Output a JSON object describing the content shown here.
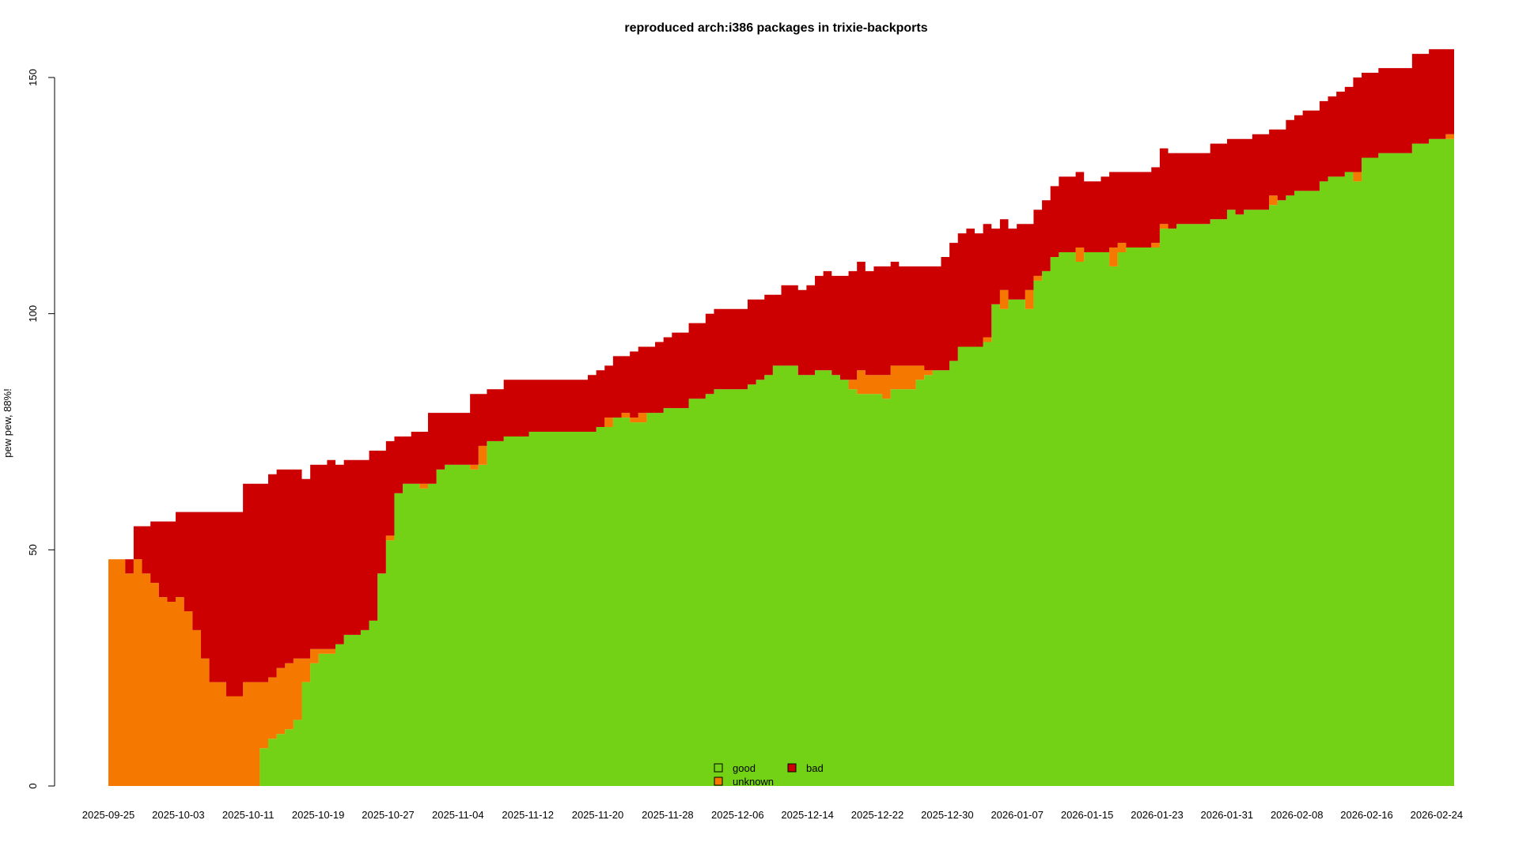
{
  "chart_data": {
    "type": "area",
    "title": "reproduced arch:i386 packages in trixie-backports",
    "ylabel": "pew pew, 88%!",
    "xlabel": "",
    "start_date": "2025-09-25",
    "end_date": "2026-02-26",
    "ylim": [
      0,
      150
    ],
    "yticks": [
      0,
      50,
      100,
      150
    ],
    "xtick_labels": [
      "2025-09-25",
      "2025-10-03",
      "2025-10-11",
      "2025-10-19",
      "2025-10-27",
      "2025-11-04",
      "2025-11-12",
      "2025-11-20",
      "2025-11-28",
      "2025-12-06",
      "2025-12-14",
      "2025-12-22",
      "2025-12-30",
      "2026-01-07",
      "2026-01-15",
      "2026-01-23",
      "2026-01-31",
      "2026-02-08",
      "2026-02-16",
      "2026-02-24"
    ],
    "stacking": "good at bottom, unknown stacked above good, bad stacked on top",
    "legend": {
      "placement": "bottom-center",
      "items": [
        {
          "label": "good",
          "color": "#73d216"
        },
        {
          "label": "bad",
          "color": "#cc0000"
        },
        {
          "label": "unknown",
          "color": "#f57900"
        }
      ]
    },
    "series": [
      {
        "name": "good",
        "color": "#73d216",
        "values": [
          0,
          0,
          0,
          0,
          0,
          0,
          0,
          0,
          0,
          0,
          0,
          0,
          0,
          0,
          0,
          0,
          0,
          0,
          8,
          10,
          11,
          12,
          14,
          22,
          26,
          28,
          28,
          30,
          32,
          32,
          33,
          35,
          45,
          52,
          62,
          64,
          64,
          63,
          64,
          67,
          68,
          68,
          68,
          67,
          68,
          73,
          73,
          74,
          74,
          74,
          75,
          75,
          75,
          75,
          75,
          75,
          75,
          75,
          76,
          76,
          78,
          78,
          77,
          77,
          79,
          79,
          80,
          80,
          80,
          82,
          82,
          83,
          84,
          84,
          84,
          84,
          85,
          86,
          87,
          89,
          89,
          89,
          87,
          87,
          88,
          88,
          87,
          86,
          84,
          83,
          83,
          83,
          82,
          84,
          84,
          84,
          86,
          87,
          88,
          88,
          90,
          93,
          93,
          93,
          94,
          102,
          101,
          103,
          103,
          101,
          107,
          109,
          112,
          113,
          113,
          111,
          113,
          113,
          113,
          110,
          113,
          114,
          114,
          114,
          114,
          118,
          118,
          119,
          119,
          119,
          119,
          120,
          120,
          122,
          121,
          122,
          122,
          122,
          123,
          124,
          125,
          126,
          126,
          126,
          128,
          129,
          129,
          130,
          128,
          133,
          133,
          134,
          134,
          134,
          134,
          136,
          136,
          137,
          137,
          137
        ]
      },
      {
        "name": "unknown",
        "color": "#f57900",
        "values": [
          48,
          48,
          45,
          48,
          45,
          43,
          40,
          39,
          40,
          37,
          33,
          27,
          22,
          22,
          19,
          19,
          22,
          22,
          14,
          13,
          14,
          14,
          13,
          5,
          3,
          1,
          1,
          0,
          0,
          0,
          0,
          0,
          0,
          1,
          0,
          0,
          0,
          1,
          0,
          0,
          0,
          0,
          0,
          1,
          4,
          0,
          0,
          0,
          0,
          0,
          0,
          0,
          0,
          0,
          0,
          0,
          0,
          0,
          0,
          2,
          0,
          1,
          1,
          2,
          0,
          0,
          0,
          0,
          0,
          0,
          0,
          0,
          0,
          0,
          0,
          0,
          0,
          0,
          0,
          0,
          0,
          0,
          0,
          0,
          0,
          0,
          0,
          0,
          2,
          5,
          4,
          4,
          5,
          5,
          5,
          5,
          3,
          1,
          0,
          0,
          0,
          0,
          0,
          0,
          1,
          0,
          4,
          0,
          0,
          4,
          1,
          0,
          0,
          0,
          0,
          3,
          0,
          0,
          0,
          4,
          2,
          0,
          0,
          0,
          1,
          1,
          0,
          0,
          0,
          0,
          0,
          0,
          0,
          0,
          0,
          0,
          0,
          0,
          2,
          0,
          0,
          0,
          0,
          0,
          0,
          0,
          0,
          0,
          2,
          0,
          0,
          0,
          0,
          0,
          0,
          0,
          0,
          0,
          0,
          1
        ]
      },
      {
        "name": "bad",
        "color": "#cc0000",
        "values": [
          0,
          0,
          3,
          7,
          10,
          13,
          16,
          17,
          18,
          21,
          25,
          31,
          36,
          36,
          39,
          39,
          42,
          42,
          42,
          43,
          42,
          41,
          40,
          38,
          39,
          39,
          40,
          38,
          37,
          37,
          36,
          36,
          26,
          20,
          12,
          10,
          11,
          11,
          15,
          12,
          11,
          11,
          11,
          15,
          11,
          11,
          11,
          12,
          12,
          12,
          11,
          11,
          11,
          11,
          11,
          11,
          11,
          12,
          12,
          11,
          13,
          12,
          14,
          14,
          14,
          15,
          15,
          16,
          16,
          16,
          16,
          17,
          17,
          17,
          17,
          17,
          18,
          17,
          17,
          15,
          17,
          17,
          18,
          19,
          20,
          21,
          21,
          22,
          23,
          23,
          22,
          23,
          23,
          22,
          21,
          21,
          21,
          22,
          22,
          24,
          25,
          24,
          25,
          24,
          24,
          16,
          15,
          15,
          16,
          14,
          14,
          15,
          15,
          16,
          16,
          16,
          15,
          15,
          16,
          16,
          15,
          16,
          16,
          16,
          16,
          16,
          16,
          15,
          15,
          15,
          15,
          16,
          16,
          15,
          16,
          15,
          16,
          16,
          14,
          15,
          16,
          16,
          17,
          17,
          17,
          17,
          18,
          18,
          20,
          18,
          18,
          18,
          18,
          18,
          18,
          19,
          19,
          19,
          19,
          18
        ]
      }
    ]
  }
}
